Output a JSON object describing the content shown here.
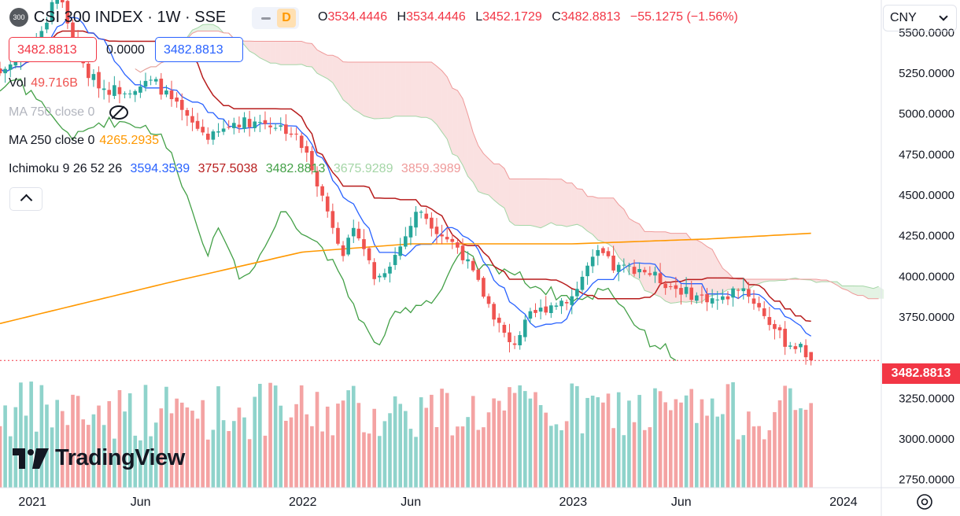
{
  "header": {
    "symbol_badge": "300",
    "title": "CSI 300 INDEX · 1W · SSE",
    "d_label": "D",
    "o_label": "O",
    "o_value": "3534.4446",
    "h_label": "H",
    "h_value": "3534.4446",
    "l_label": "L",
    "l_value": "3452.1729",
    "c_label": "C",
    "c_value": "3482.8813",
    "change": "−55.1275 (−1.56%)",
    "sell_box": "3482.8813",
    "spread": "0.0000",
    "buy_box": "3482.8813"
  },
  "legend": {
    "vol_label": "Vol",
    "vol_value": "49.716B",
    "ma750_label": "MA 750 close 0",
    "ma250_label": "MA 250 close 0",
    "ma250_value": "4265.2935",
    "ichimoku_label": "Ichimoku 9 26 52 26",
    "ichi_conversion": "3594.3539",
    "ichi_base": "3757.5038",
    "ichi_lagging": "3482.8813",
    "ichi_span_a": "3675.9289",
    "ichi_span_b": "3859.3989"
  },
  "currency": "CNY",
  "last_price_tag": "3482.8813",
  "logo_text": "TradingView",
  "colors": {
    "up": "#26a69a",
    "down": "#ef5350",
    "vol_up": "#8fd3cb",
    "vol_down": "#f4a3a3",
    "conversion": "#2962ff",
    "base": "#b71c1c",
    "lagging": "#43a047",
    "cloud_bull": "#a5d6a7",
    "cloud_bear": "#ef9a9a",
    "ma250": "#ff9800",
    "price_tag": "#f23645"
  },
  "chart_data": {
    "type": "candlestick",
    "interval": "1W",
    "y_axis": {
      "ticks": [
        "5500.0000",
        "5250.0000",
        "5000.0000",
        "4750.0000",
        "4500.0000",
        "4250.0000",
        "4000.0000",
        "3750.0000",
        "3250.0000",
        "3000.0000",
        "2750.0000"
      ],
      "range": [
        2700,
        5700
      ]
    },
    "x_axis": {
      "ticks": [
        {
          "label": "2021",
          "t": 0
        },
        {
          "label": "Jun",
          "t": 0.4
        },
        {
          "label": "2022",
          "t": 1.0
        },
        {
          "label": "Jun",
          "t": 1.4
        },
        {
          "label": "2023",
          "t": 2.0
        },
        {
          "label": "Jun",
          "t": 2.4
        },
        {
          "label": "2024",
          "t": 3.0
        }
      ],
      "range_years": [
        -0.12,
        3.14
      ]
    },
    "last_close": 3482.8813,
    "close_anchors": [
      {
        "t": -0.12,
        "v": 5250
      },
      {
        "t": 0.04,
        "v": 5500
      },
      {
        "t": 0.09,
        "v": 5800
      },
      {
        "t": 0.14,
        "v": 5500
      },
      {
        "t": 0.2,
        "v": 5250
      },
      {
        "t": 0.27,
        "v": 5150
      },
      {
        "t": 0.35,
        "v": 5150
      },
      {
        "t": 0.45,
        "v": 5200
      },
      {
        "t": 0.53,
        "v": 5050
      },
      {
        "t": 0.58,
        "v": 4950
      },
      {
        "t": 0.66,
        "v": 4850
      },
      {
        "t": 0.75,
        "v": 4950
      },
      {
        "t": 0.85,
        "v": 4950
      },
      {
        "t": 0.92,
        "v": 4920
      },
      {
        "t": 0.97,
        "v": 4870
      },
      {
        "t": 1.03,
        "v": 4700
      },
      {
        "t": 1.08,
        "v": 4450
      },
      {
        "t": 1.15,
        "v": 4150
      },
      {
        "t": 1.2,
        "v": 4300
      },
      {
        "t": 1.27,
        "v": 3970
      },
      {
        "t": 1.35,
        "v": 4150
      },
      {
        "t": 1.43,
        "v": 4420
      },
      {
        "t": 1.5,
        "v": 4280
      },
      {
        "t": 1.58,
        "v": 4170
      },
      {
        "t": 1.65,
        "v": 3950
      },
      {
        "t": 1.72,
        "v": 3720
      },
      {
        "t": 1.77,
        "v": 3560
      },
      {
        "t": 1.84,
        "v": 3750
      },
      {
        "t": 1.91,
        "v": 3820
      },
      {
        "t": 2.0,
        "v": 3880
      },
      {
        "t": 2.05,
        "v": 4050
      },
      {
        "t": 2.1,
        "v": 4150
      },
      {
        "t": 2.15,
        "v": 4050
      },
      {
        "t": 2.25,
        "v": 4050
      },
      {
        "t": 2.35,
        "v": 3950
      },
      {
        "t": 2.45,
        "v": 3880
      },
      {
        "t": 2.55,
        "v": 3850
      },
      {
        "t": 2.62,
        "v": 3950
      },
      {
        "t": 2.7,
        "v": 3780
      },
      {
        "t": 2.78,
        "v": 3600
      },
      {
        "t": 2.84,
        "v": 3560
      },
      {
        "t": 2.88,
        "v": 3483
      }
    ],
    "ma250_anchors": [
      {
        "t": -0.12,
        "v": 3710
      },
      {
        "t": 0.5,
        "v": 3960
      },
      {
        "t": 1.0,
        "v": 4150
      },
      {
        "t": 1.4,
        "v": 4200
      },
      {
        "t": 2.0,
        "v": 4200
      },
      {
        "t": 2.5,
        "v": 4230
      },
      {
        "t": 2.88,
        "v": 4265
      }
    ],
    "ichimoku_params": {
      "conversion": 9,
      "base": 26,
      "span_b": 52,
      "displacement": 26
    }
  }
}
